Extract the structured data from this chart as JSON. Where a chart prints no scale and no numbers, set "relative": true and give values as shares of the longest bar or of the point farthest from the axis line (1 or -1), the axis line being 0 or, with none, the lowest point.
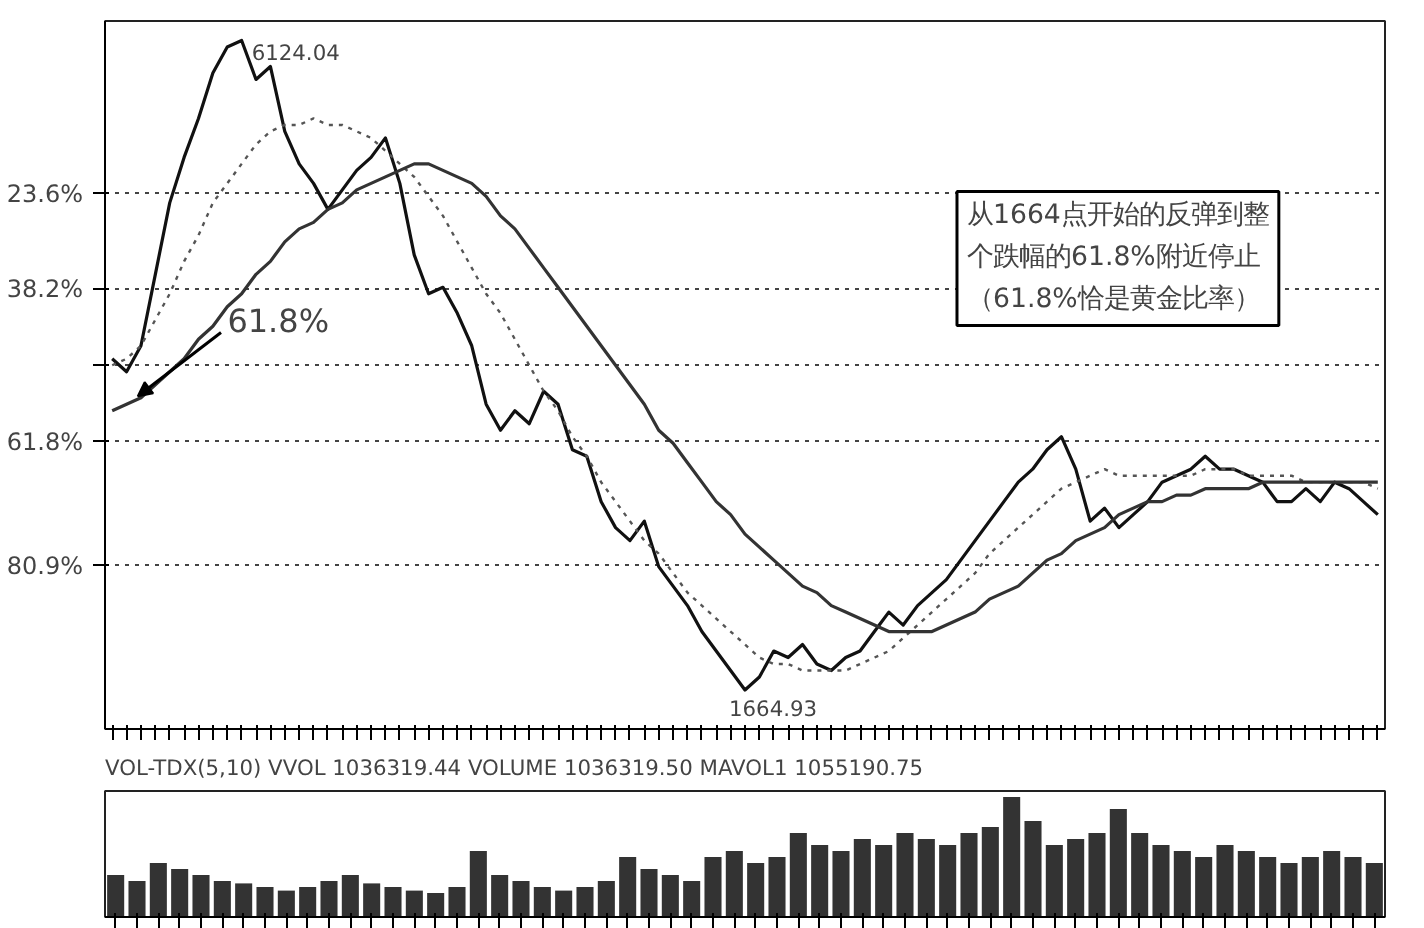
{
  "chart_data": [
    {
      "type": "line",
      "categories": [
        null,
        null,
        null,
        null,
        null,
        null,
        null,
        null,
        null,
        null,
        null,
        null,
        null,
        null,
        null,
        null,
        null,
        null,
        null,
        null,
        null,
        null,
        null,
        null,
        null,
        null,
        null,
        null,
        null,
        null,
        null,
        null,
        null,
        null,
        null,
        null,
        null,
        null,
        null,
        null,
        null,
        null,
        null,
        null,
        null,
        null,
        null,
        null,
        null,
        null,
        null,
        null,
        null,
        null,
        null,
        null,
        null,
        null,
        null,
        null,
        null,
        null,
        null,
        null,
        null,
        null,
        null,
        null,
        null,
        null,
        null,
        null,
        null,
        null,
        null,
        null,
        null,
        null,
        null,
        null,
        null,
        null,
        null,
        null,
        null,
        null,
        null,
        null,
        null
      ],
      "series": [
        {
          "color": "#111111",
          "line_style": "solid",
          "values": [
            49,
            51,
            47,
            36,
            25,
            18,
            12,
            5,
            1,
            0,
            6,
            4,
            14,
            19,
            22,
            26,
            23,
            20,
            18,
            15,
            22,
            33,
            39,
            38,
            42,
            47,
            56,
            60,
            57,
            59,
            54,
            56,
            63,
            64,
            71,
            75,
            77,
            74,
            81,
            84,
            87,
            91,
            94,
            97,
            100,
            98,
            94,
            95,
            93,
            96,
            97,
            95,
            94,
            91,
            88,
            90,
            87,
            85,
            83,
            80,
            77,
            74,
            71,
            68,
            66,
            63,
            61,
            66,
            74,
            72,
            75,
            73,
            71,
            68,
            67,
            66,
            64,
            66,
            66,
            67,
            68,
            71,
            71,
            69,
            71,
            68,
            69,
            71,
            73
          ]
        },
        {
          "color": "#555555",
          "line_style": "dotted",
          "values": [
            50,
            49,
            47,
            43,
            39,
            34,
            30,
            25,
            22,
            19,
            16,
            14,
            13,
            13,
            12,
            13,
            13,
            14,
            15,
            17,
            19,
            21,
            24,
            27,
            31,
            35,
            39,
            42,
            46,
            50,
            54,
            57,
            61,
            64,
            68,
            71,
            74,
            77,
            79,
            82,
            85,
            87,
            89,
            91,
            93,
            95,
            96,
            96,
            97,
            97,
            97,
            97,
            96,
            95,
            94,
            92,
            90,
            88,
            86,
            84,
            82,
            79,
            77,
            75,
            73,
            71,
            69,
            68,
            67,
            66,
            67,
            67,
            67,
            67,
            67,
            67,
            66,
            66,
            66,
            67,
            67,
            67,
            67,
            68,
            68,
            68,
            68,
            68,
            69
          ]
        },
        {
          "color": "#333333",
          "line_style": "solid",
          "values": [
            57,
            56,
            55,
            53,
            51,
            49,
            46,
            44,
            41,
            39,
            36,
            34,
            31,
            29,
            28,
            26,
            25,
            23,
            22,
            21,
            20,
            19,
            19,
            20,
            21,
            22,
            24,
            27,
            29,
            32,
            35,
            38,
            41,
            44,
            47,
            50,
            53,
            56,
            60,
            62,
            65,
            68,
            71,
            73,
            76,
            78,
            80,
            82,
            84,
            85,
            87,
            88,
            89,
            90,
            91,
            91,
            91,
            91,
            90,
            89,
            88,
            86,
            85,
            84,
            82,
            80,
            79,
            77,
            76,
            75,
            73,
            72,
            71,
            71,
            70,
            70,
            69,
            69,
            69,
            69,
            68,
            68,
            68,
            68,
            68,
            68,
            68,
            68,
            68
          ]
        }
      ],
      "ylim": [
        106,
        -3
      ],
      "yticks": [
        {
          "value": 23.6,
          "label": "23.6%"
        },
        {
          "value": 38.2,
          "label": "38.2%"
        },
        {
          "value": 50,
          "label": null
        },
        {
          "value": 61.8,
          "label": "61.8%"
        },
        {
          "value": 80.9,
          "label": "80.9%"
        }
      ],
      "tick_labels": "y",
      "grid": "y",
      "annotations": [
        "从1664点开始的反弹到整个跌幅的61.8%附近停止（61.8%恰是黄金比率）",
        "61.8%",
        "6124.04",
        "1664.93"
      ]
    },
    {
      "type": "bar",
      "relative": true,
      "tick_labels": false,
      "title": "VOL-TDX(5,10)  VVOL 1036319.44  VOLUME 1036319.50  MAVOL1 1055190.75",
      "color": "#333333",
      "categories": [
        null,
        null,
        null,
        null,
        null,
        null,
        null,
        null,
        null,
        null,
        null,
        null,
        null,
        null,
        null,
        null,
        null,
        null,
        null,
        null,
        null,
        null,
        null,
        null,
        null,
        null,
        null,
        null,
        null,
        null,
        null,
        null,
        null,
        null,
        null,
        null,
        null,
        null,
        null,
        null,
        null,
        null,
        null,
        null,
        null,
        null,
        null,
        null,
        null,
        null,
        null,
        null,
        null,
        null,
        null,
        null,
        null,
        null,
        null,
        null
      ],
      "values": [
        0.35,
        0.3,
        0.45,
        0.4,
        0.35,
        0.3,
        0.28,
        0.25,
        0.22,
        0.25,
        0.3,
        0.35,
        0.28,
        0.25,
        0.22,
        0.2,
        0.25,
        0.55,
        0.35,
        0.3,
        0.25,
        0.22,
        0.25,
        0.3,
        0.5,
        0.4,
        0.35,
        0.3,
        0.5,
        0.55,
        0.45,
        0.5,
        0.7,
        0.6,
        0.55,
        0.65,
        0.6,
        0.7,
        0.65,
        0.6,
        0.7,
        0.75,
        1.0,
        0.8,
        0.6,
        0.65,
        0.7,
        0.9,
        0.7,
        0.6,
        0.55,
        0.5,
        0.6,
        0.55,
        0.5,
        0.45,
        0.5,
        0.55,
        0.5,
        0.45
      ]
    }
  ]
}
